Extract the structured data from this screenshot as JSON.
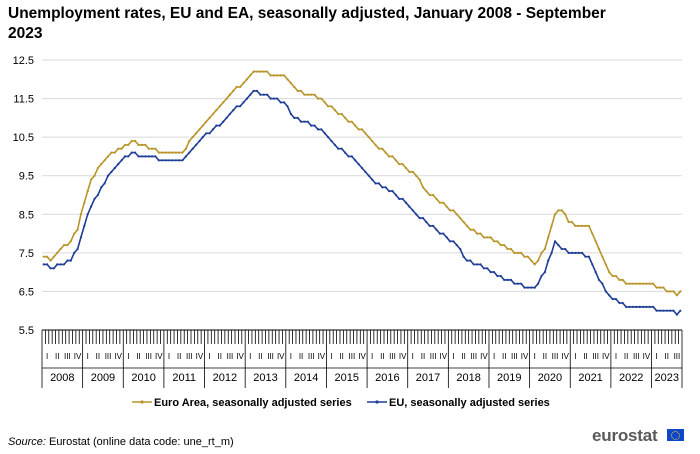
{
  "title": "Unemployment rates, EU and EA, seasonally adjusted, January 2008 - September 2023",
  "source_label": "Source:",
  "source_text": " Eurostat (online data code: une_rt_m)",
  "logo_text": "eurostat",
  "colors": {
    "euro_area": "#b8952a",
    "eu": "#1f3f97",
    "grid": "#d9d9d9",
    "axis": "#000000"
  },
  "chart_data": {
    "type": "line",
    "title": "Unemployment rates, EU and EA, seasonally adjusted, January 2008 - September 2023",
    "xlabel": "",
    "ylabel": "",
    "ylim": [
      5.5,
      12.5
    ],
    "yticks": [
      "5.5",
      "6.5",
      "7.5",
      "8.5",
      "9.5",
      "10.5",
      "11.5",
      "12.5"
    ],
    "grid": true,
    "legend_position": "bottom",
    "quarter_labels": [
      "I",
      "II",
      "III",
      "IV"
    ],
    "years": [
      "2008",
      "2009",
      "2010",
      "2011",
      "2012",
      "2013",
      "2014",
      "2015",
      "2016",
      "2017",
      "2018",
      "2019",
      "2020",
      "2021",
      "2022",
      "2023"
    ],
    "x_start": "2008-01",
    "x_end": "2023-09",
    "series": [
      {
        "name": "Euro Area, seasonally adjusted series",
        "color": "#b8952a",
        "keypoints": [
          [
            "2008-01",
            7.4
          ],
          [
            "2008-03",
            7.3
          ],
          [
            "2008-06",
            7.6
          ],
          [
            "2008-09",
            7.8
          ],
          [
            "2008-11",
            8.1
          ],
          [
            "2009-01",
            8.8
          ],
          [
            "2009-03",
            9.4
          ],
          [
            "2009-06",
            9.8
          ],
          [
            "2009-09",
            10.1
          ],
          [
            "2009-12",
            10.2
          ],
          [
            "2010-03",
            10.4
          ],
          [
            "2010-06",
            10.3
          ],
          [
            "2010-09",
            10.2
          ],
          [
            "2010-12",
            10.1
          ],
          [
            "2011-03",
            10.1
          ],
          [
            "2011-06",
            10.1
          ],
          [
            "2011-09",
            10.5
          ],
          [
            "2011-12",
            10.8
          ],
          [
            "2012-03",
            11.1
          ],
          [
            "2012-06",
            11.4
          ],
          [
            "2012-09",
            11.7
          ],
          [
            "2012-12",
            11.9
          ],
          [
            "2013-03",
            12.2
          ],
          [
            "2013-06",
            12.2
          ],
          [
            "2013-09",
            12.1
          ],
          [
            "2013-12",
            12.1
          ],
          [
            "2014-03",
            11.8
          ],
          [
            "2014-06",
            11.6
          ],
          [
            "2014-09",
            11.6
          ],
          [
            "2014-12",
            11.4
          ],
          [
            "2015-03",
            11.2
          ],
          [
            "2015-06",
            11.0
          ],
          [
            "2015-09",
            10.8
          ],
          [
            "2015-12",
            10.6
          ],
          [
            "2016-03",
            10.3
          ],
          [
            "2016-06",
            10.1
          ],
          [
            "2016-09",
            9.9
          ],
          [
            "2016-12",
            9.7
          ],
          [
            "2017-03",
            9.5
          ],
          [
            "2017-06",
            9.1
          ],
          [
            "2017-09",
            8.9
          ],
          [
            "2017-12",
            8.7
          ],
          [
            "2018-03",
            8.5
          ],
          [
            "2018-06",
            8.2
          ],
          [
            "2018-09",
            8.0
          ],
          [
            "2018-12",
            7.9
          ],
          [
            "2019-03",
            7.8
          ],
          [
            "2019-06",
            7.6
          ],
          [
            "2019-09",
            7.5
          ],
          [
            "2019-12",
            7.4
          ],
          [
            "2020-02",
            7.2
          ],
          [
            "2020-05",
            7.6
          ],
          [
            "2020-08",
            8.5
          ],
          [
            "2020-10",
            8.6
          ],
          [
            "2020-12",
            8.3
          ],
          [
            "2021-03",
            8.2
          ],
          [
            "2021-06",
            8.2
          ],
          [
            "2021-09",
            7.6
          ],
          [
            "2021-12",
            7.0
          ],
          [
            "2022-03",
            6.8
          ],
          [
            "2022-06",
            6.7
          ],
          [
            "2022-09",
            6.7
          ],
          [
            "2022-12",
            6.7
          ],
          [
            "2023-03",
            6.6
          ],
          [
            "2023-06",
            6.5
          ],
          [
            "2023-08",
            6.4
          ],
          [
            "2023-09",
            6.5
          ]
        ]
      },
      {
        "name": "EU, seasonally adjusted series",
        "color": "#1f3f97",
        "keypoints": [
          [
            "2008-01",
            7.2
          ],
          [
            "2008-03",
            7.1
          ],
          [
            "2008-06",
            7.2
          ],
          [
            "2008-09",
            7.3
          ],
          [
            "2008-11",
            7.6
          ],
          [
            "2009-01",
            8.2
          ],
          [
            "2009-03",
            8.7
          ],
          [
            "2009-06",
            9.2
          ],
          [
            "2009-09",
            9.6
          ],
          [
            "2009-12",
            9.9
          ],
          [
            "2010-03",
            10.1
          ],
          [
            "2010-06",
            10.0
          ],
          [
            "2010-09",
            10.0
          ],
          [
            "2010-12",
            9.9
          ],
          [
            "2011-03",
            9.9
          ],
          [
            "2011-06",
            9.9
          ],
          [
            "2011-09",
            10.2
          ],
          [
            "2011-12",
            10.5
          ],
          [
            "2012-03",
            10.7
          ],
          [
            "2012-06",
            10.9
          ],
          [
            "2012-09",
            11.2
          ],
          [
            "2012-12",
            11.4
          ],
          [
            "2013-03",
            11.7
          ],
          [
            "2013-06",
            11.6
          ],
          [
            "2013-09",
            11.5
          ],
          [
            "2013-12",
            11.4
          ],
          [
            "2014-03",
            11.0
          ],
          [
            "2014-06",
            10.9
          ],
          [
            "2014-09",
            10.8
          ],
          [
            "2014-12",
            10.6
          ],
          [
            "2015-03",
            10.3
          ],
          [
            "2015-06",
            10.1
          ],
          [
            "2015-09",
            9.9
          ],
          [
            "2015-12",
            9.6
          ],
          [
            "2016-03",
            9.3
          ],
          [
            "2016-06",
            9.2
          ],
          [
            "2016-09",
            9.0
          ],
          [
            "2016-12",
            8.8
          ],
          [
            "2017-03",
            8.5
          ],
          [
            "2017-06",
            8.3
          ],
          [
            "2017-09",
            8.1
          ],
          [
            "2017-12",
            7.9
          ],
          [
            "2018-03",
            7.7
          ],
          [
            "2018-06",
            7.3
          ],
          [
            "2018-09",
            7.2
          ],
          [
            "2018-12",
            7.1
          ],
          [
            "2019-03",
            6.9
          ],
          [
            "2019-06",
            6.8
          ],
          [
            "2019-09",
            6.7
          ],
          [
            "2019-12",
            6.6
          ],
          [
            "2020-02",
            6.6
          ],
          [
            "2020-05",
            7.0
          ],
          [
            "2020-08",
            7.8
          ],
          [
            "2020-10",
            7.6
          ],
          [
            "2020-12",
            7.5
          ],
          [
            "2021-03",
            7.5
          ],
          [
            "2021-06",
            7.4
          ],
          [
            "2021-09",
            6.8
          ],
          [
            "2021-12",
            6.4
          ],
          [
            "2022-03",
            6.2
          ],
          [
            "2022-06",
            6.1
          ],
          [
            "2022-09",
            6.1
          ],
          [
            "2022-12",
            6.1
          ],
          [
            "2023-03",
            6.0
          ],
          [
            "2023-06",
            6.0
          ],
          [
            "2023-08",
            5.9
          ],
          [
            "2023-09",
            6.0
          ]
        ]
      }
    ]
  }
}
